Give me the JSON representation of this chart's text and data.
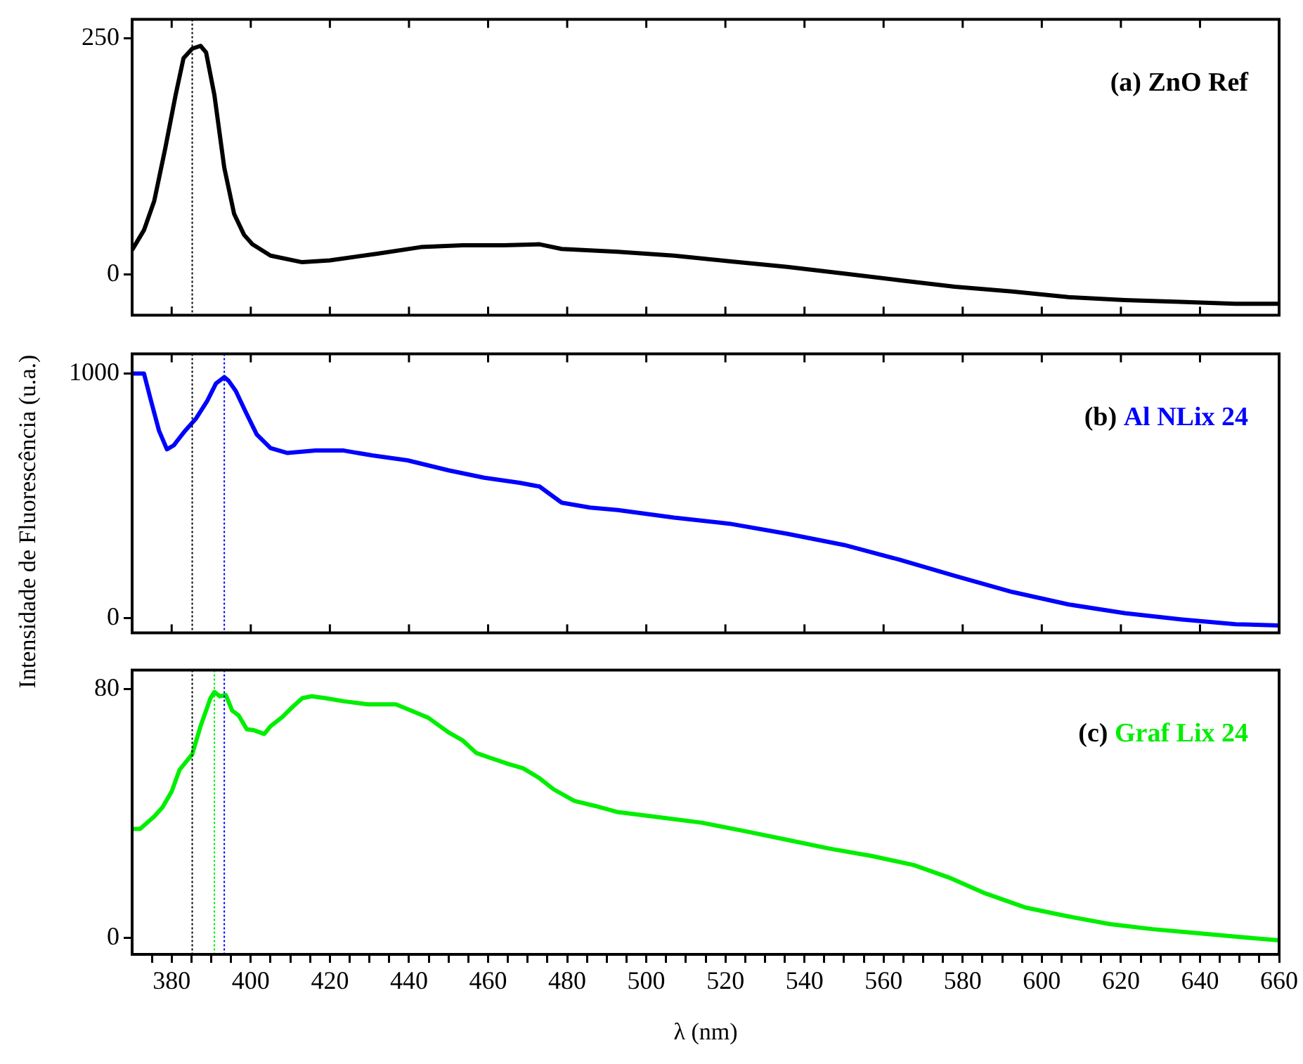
{
  "chart_data": [
    {
      "type": "line",
      "annotations": [
        "(a)"
      ],
      "legend": "top right",
      "tick_labels": "y",
      "x": [
        370,
        373,
        375.6,
        378.4,
        381,
        383,
        385.2,
        387.3,
        388.7,
        390.8,
        393.3,
        395.8,
        398.3,
        400.4,
        405,
        413,
        420,
        432,
        443,
        453.6,
        464,
        473,
        478.6,
        492.8,
        507,
        521,
        535.6,
        550,
        564,
        578,
        592.5,
        606.7,
        621,
        635,
        649,
        660
      ],
      "series": [
        {
          "name": "ZnO Ref",
          "color": "#000000",
          "values": [
            26,
            47,
            78,
            134,
            190,
            229,
            239,
            242,
            235,
            190,
            113,
            64,
            42,
            32,
            20,
            13,
            15,
            22,
            29,
            31,
            31,
            32,
            27,
            24,
            20,
            14,
            8,
            1,
            -6,
            -13,
            -18,
            -24,
            -27,
            -29,
            -31,
            -31
          ]
        }
      ],
      "xlim": [
        370,
        660
      ],
      "xticks": [
        380,
        400,
        420,
        440,
        460,
        480,
        500,
        520,
        540,
        560,
        580,
        600,
        620,
        640,
        660
      ],
      "ylim": [
        -43,
        270
      ],
      "yticks": [
        0,
        250
      ],
      "ref_lines": [
        {
          "axis": "x",
          "value": 385.2,
          "color": "#000000",
          "line_style": "dotted"
        }
      ]
    },
    {
      "type": "line",
      "annotations": [
        "(b)"
      ],
      "legend": "top right",
      "tick_labels": "y",
      "ylabel": "Intensidade de Fluorescência (u.a.)",
      "x": [
        370,
        373,
        374.7,
        376.8,
        378.8,
        380.5,
        383.4,
        386.2,
        389,
        391.2,
        393.3,
        394.4,
        396.2,
        398.7,
        401.5,
        405,
        409.3,
        416.4,
        423.5,
        430.7,
        439.6,
        450,
        459,
        468,
        473,
        478.6,
        485.8,
        492.8,
        507,
        521,
        535.6,
        550,
        564,
        578,
        592.5,
        606.7,
        621,
        635,
        649,
        660
      ],
      "series": [
        {
          "name": "Al NLix 24",
          "color": "#0000ff",
          "values": [
            1000,
            1000,
            893,
            766,
            690,
            706,
            766,
            817,
            888,
            959,
            985,
            970,
            929,
            843,
            751,
            695,
            675,
            685,
            685,
            665,
            645,
            604,
            574,
            553,
            538,
            472,
            452,
            442,
            411,
            386,
            345,
            299,
            239,
            173,
            107,
            56,
            20,
            -5,
            -25,
            -30
          ]
        }
      ],
      "xlim": [
        370,
        660
      ],
      "xticks": [
        380,
        400,
        420,
        440,
        460,
        480,
        500,
        520,
        540,
        560,
        580,
        600,
        620,
        640,
        660
      ],
      "ylim": [
        -60,
        1080
      ],
      "yticks": [
        0,
        1000
      ],
      "ref_lines": [
        {
          "axis": "x",
          "value": 385.2,
          "color": "#000000",
          "line_style": "dotted"
        },
        {
          "axis": "x",
          "value": 393.3,
          "color": "#0000ff",
          "line_style": "dotted"
        }
      ]
    },
    {
      "type": "line",
      "annotations": [
        "(c)"
      ],
      "legend": "top right",
      "xlabel": "λ (nm)",
      "x": [
        370,
        372,
        375.6,
        377.7,
        380,
        382,
        385.2,
        387.3,
        389.8,
        390.8,
        392.2,
        393.7,
        395.3,
        396.9,
        399,
        400.8,
        403.4,
        405,
        408,
        410.4,
        413,
        415.4,
        419,
        423.5,
        429.6,
        436.7,
        440.6,
        444.9,
        450,
        453.6,
        457,
        460.6,
        465.3,
        468.8,
        473,
        476.6,
        481.8,
        487,
        492.8,
        503,
        514,
        524.9,
        535.6,
        546.2,
        557,
        567.6,
        576.5,
        585.3,
        596,
        606.7,
        617.3,
        628,
        638.7,
        649,
        660
      ],
      "series": [
        {
          "name": "Graf Lix 24",
          "color": "#00ee00",
          "values": [
            35,
            35,
            39,
            42,
            47,
            54,
            59,
            68,
            77,
            79,
            77.6,
            78,
            73,
            71.5,
            67,
            66.7,
            65.5,
            68,
            71,
            74,
            77,
            77.6,
            77,
            76,
            75,
            75,
            73,
            70.7,
            66,
            63.4,
            59.4,
            57.8,
            55.8,
            54.5,
            51.3,
            47.7,
            44,
            42.4,
            40.4,
            38.8,
            37,
            34.3,
            31.5,
            28.7,
            26.3,
            23.4,
            19.4,
            14.5,
            9.7,
            6.9,
            4.4,
            2.8,
            1.6,
            0.4,
            -0.8
          ]
        }
      ],
      "xlim": [
        370,
        660
      ],
      "xticks": [
        {
          "value": 375,
          "label": null
        },
        380,
        {
          "value": 385,
          "label": null
        },
        {
          "value": 390,
          "label": null
        },
        {
          "value": 395,
          "label": null
        },
        400,
        {
          "value": 405,
          "label": null
        },
        {
          "value": 410,
          "label": null
        },
        {
          "value": 415,
          "label": null
        },
        420,
        {
          "value": 425,
          "label": null
        },
        {
          "value": 430,
          "label": null
        },
        {
          "value": 435,
          "label": null
        },
        440,
        {
          "value": 445,
          "label": null
        },
        {
          "value": 450,
          "label": null
        },
        {
          "value": 455,
          "label": null
        },
        460,
        {
          "value": 465,
          "label": null
        },
        {
          "value": 470,
          "label": null
        },
        {
          "value": 475,
          "label": null
        },
        480,
        {
          "value": 485,
          "label": null
        },
        {
          "value": 490,
          "label": null
        },
        {
          "value": 495,
          "label": null
        },
        500,
        {
          "value": 505,
          "label": null
        },
        {
          "value": 510,
          "label": null
        },
        {
          "value": 515,
          "label": null
        },
        520,
        {
          "value": 525,
          "label": null
        },
        {
          "value": 530,
          "label": null
        },
        {
          "value": 535,
          "label": null
        },
        540,
        {
          "value": 545,
          "label": null
        },
        {
          "value": 550,
          "label": null
        },
        {
          "value": 555,
          "label": null
        },
        560,
        {
          "value": 565,
          "label": null
        },
        {
          "value": 570,
          "label": null
        },
        {
          "value": 575,
          "label": null
        },
        580,
        {
          "value": 585,
          "label": null
        },
        {
          "value": 590,
          "label": null
        },
        {
          "value": 595,
          "label": null
        },
        600,
        {
          "value": 605,
          "label": null
        },
        {
          "value": 610,
          "label": null
        },
        {
          "value": 615,
          "label": null
        },
        620,
        {
          "value": 625,
          "label": null
        },
        {
          "value": 630,
          "label": null
        },
        {
          "value": 635,
          "label": null
        },
        640,
        {
          "value": 645,
          "label": null
        },
        {
          "value": 650,
          "label": null
        },
        {
          "value": 655,
          "label": null
        },
        660
      ],
      "ylim": [
        -5.3,
        86
      ],
      "yticks": [
        0,
        80
      ],
      "ref_lines": [
        {
          "axis": "x",
          "value": 385.2,
          "color": "#000000",
          "line_style": "dotted"
        },
        {
          "axis": "x",
          "value": 390.8,
          "color": "#00ee00",
          "line_style": "dotted"
        },
        {
          "axis": "x",
          "value": 393.3,
          "color": "#0000ff",
          "line_style": "dotted"
        }
      ]
    }
  ]
}
